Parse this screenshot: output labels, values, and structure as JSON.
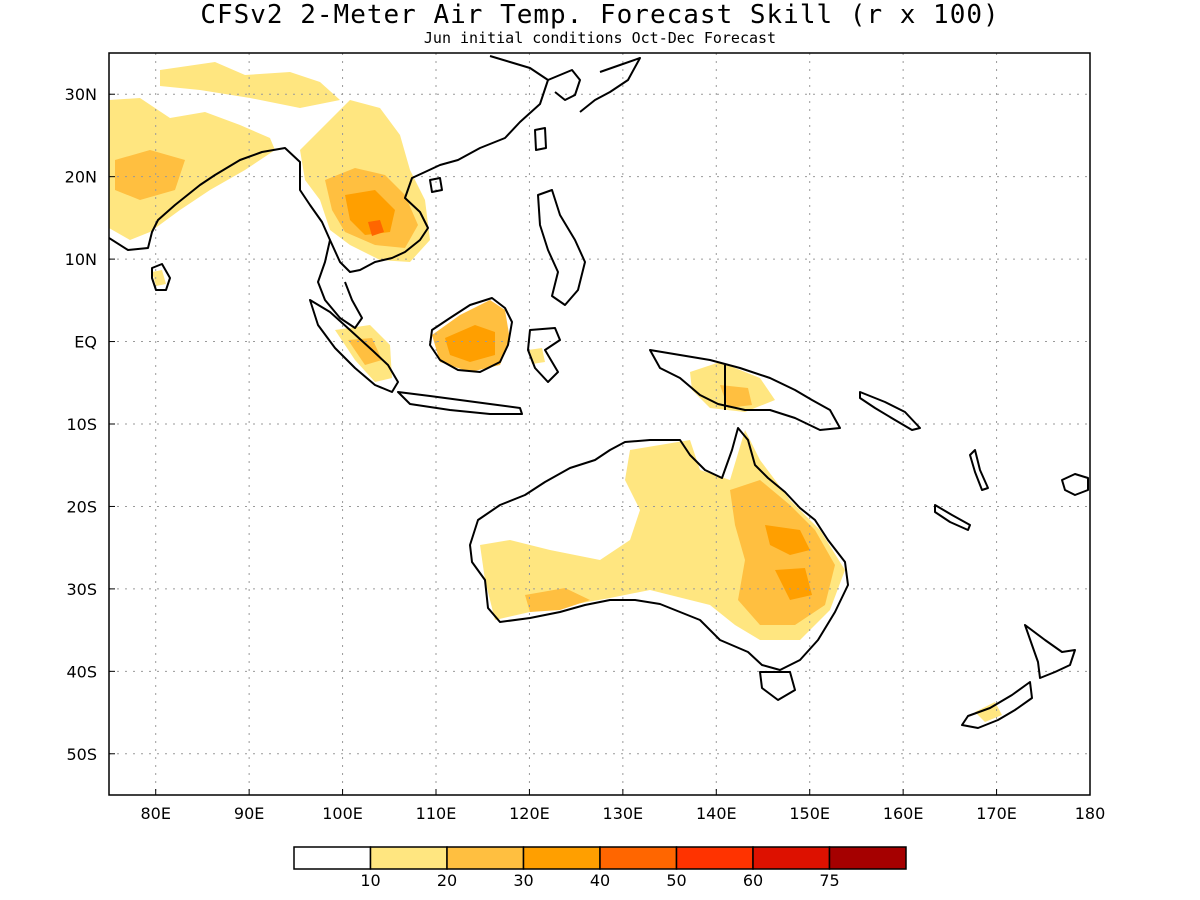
{
  "title": "CFSv2 2-Meter Air Temp. Forecast Skill (r x 100)",
  "subtitle": "Jun initial conditions  Oct-Dec Forecast",
  "map": {
    "lon_range": [
      75,
      180
    ],
    "lat_range": [
      -55,
      35
    ],
    "lon_ticks": [
      80,
      90,
      100,
      110,
      120,
      130,
      140,
      150,
      160,
      170,
      180
    ],
    "lon_tick_labels": [
      "80E",
      "90E",
      "100E",
      "110E",
      "120E",
      "130E",
      "140E",
      "150E",
      "160E",
      "170E",
      "180"
    ],
    "lat_ticks": [
      30,
      20,
      10,
      0,
      -10,
      -20,
      -30,
      -40,
      -50
    ],
    "lat_tick_labels": [
      "30N",
      "20N",
      "10N",
      "EQ",
      "10S",
      "20S",
      "30S",
      "40S",
      "50S"
    ],
    "grid": true
  },
  "colorbar": {
    "thresholds": [
      "10",
      "20",
      "30",
      "40",
      "50",
      "60",
      "75"
    ],
    "colors": [
      "#ffffff",
      "#ffe680",
      "#ffbf40",
      "#ff9f00",
      "#ff6600",
      "#ff3300",
      "#dd1100",
      "#a50000"
    ]
  }
}
